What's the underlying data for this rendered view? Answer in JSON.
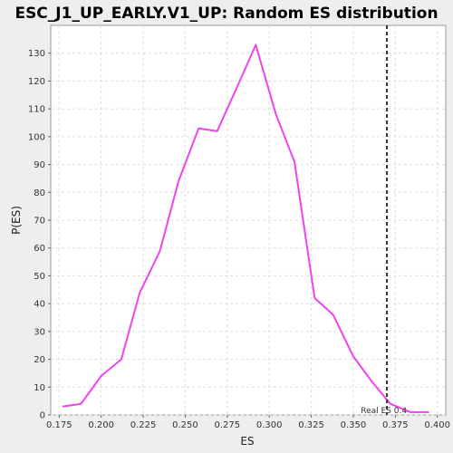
{
  "chart_data": {
    "type": "line",
    "title": "ESC_J1_UP_EARLY.V1_UP: Random ES distribution",
    "xlabel": "ES",
    "ylabel": "P(ES)",
    "xlim": [
      0.17,
      0.405
    ],
    "ylim": [
      0,
      140
    ],
    "x_ticks": [
      0.175,
      0.2,
      0.225,
      0.25,
      0.275,
      0.3,
      0.325,
      0.35,
      0.375,
      0.4
    ],
    "x_tick_labels": [
      "0.175",
      "0.200",
      "0.225",
      "0.250",
      "0.275",
      "0.300",
      "0.325",
      "0.350",
      "0.375",
      "0.400"
    ],
    "y_ticks": [
      0,
      10,
      20,
      30,
      40,
      50,
      60,
      70,
      80,
      90,
      100,
      110,
      120,
      130
    ],
    "y_tick_labels": [
      "0",
      "10",
      "20",
      "30",
      "40",
      "50",
      "60",
      "70",
      "80",
      "90",
      "100",
      "110",
      "120",
      "130"
    ],
    "grid": true,
    "series": [
      {
        "color": "#ee44ee",
        "x": [
          0.177,
          0.188,
          0.2,
          0.212,
          0.223,
          0.235,
          0.246,
          0.258,
          0.269,
          0.281,
          0.292,
          0.304,
          0.315,
          0.327,
          0.338,
          0.35,
          0.361,
          0.372,
          0.384,
          0.395
        ],
        "y": [
          3,
          4,
          14,
          20,
          44,
          59,
          84,
          103,
          102,
          118,
          133,
          108,
          91,
          42,
          36,
          21,
          12,
          4,
          1,
          1
        ]
      }
    ],
    "reference_line": {
      "x": 0.37,
      "label": "Real ES 0.4",
      "color": "#333333",
      "style": "dashed"
    }
  }
}
